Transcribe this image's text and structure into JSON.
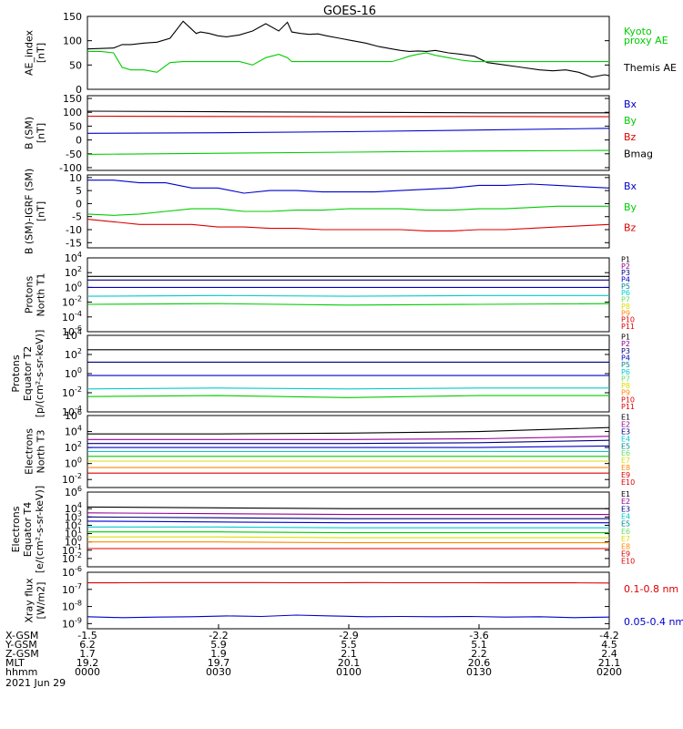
{
  "title": "GOES-16",
  "colors": {
    "black": "#000000",
    "blue": "#0000cc",
    "green": "#00cc00",
    "red": "#dd0000",
    "cyan": "#00cccc",
    "yellow": "#dddd00",
    "orange": "#ff8800",
    "purple": "#990099",
    "navy": "#000080",
    "teal": "#008b8b",
    "lightgreen": "#66dd66"
  },
  "x_axis": {
    "ticks": [
      "-1.5",
      "-2.2",
      "-2.9",
      "-3.6",
      "-4.2"
    ],
    "rows": [
      {
        "label": "X-GSM",
        "values": [
          "-1.5",
          "-2.2",
          "-2.9",
          "-3.6",
          "-4.2"
        ]
      },
      {
        "label": "Y-GSM",
        "values": [
          "6.2",
          "5.9",
          "5.5",
          "5.1",
          "4.5"
        ]
      },
      {
        "label": "Z-GSM",
        "values": [
          "1.7",
          "1.9",
          "2.1",
          "2.2",
          "2.4"
        ]
      },
      {
        "label": "MLT",
        "values": [
          "19.2",
          "19.7",
          "20.1",
          "20.6",
          "21.1"
        ]
      },
      {
        "label": "hhmm",
        "values": [
          "0000",
          "0030",
          "0100",
          "0130",
          "0200"
        ]
      }
    ],
    "date": "2021 Jun 29"
  },
  "chart_data": [
    {
      "type": "line",
      "ylabel": [
        "AE_index",
        "[nT]"
      ],
      "ylim": [
        0,
        150
      ],
      "yticks": [
        "0",
        "50",
        "100",
        "150"
      ],
      "legend": [
        {
          "text": "Kyoto",
          "color": "green"
        },
        {
          "text": "proxy AE",
          "color": "green"
        },
        {
          "text": "Themis AE",
          "color": "black"
        }
      ],
      "x": [
        0,
        3,
        6,
        8,
        10,
        13,
        16,
        19,
        22,
        25,
        26,
        28,
        30,
        32,
        35,
        38,
        41,
        44,
        46,
        47,
        49,
        51,
        53,
        55,
        58,
        61,
        64,
        67,
        70,
        72,
        74,
        76,
        78,
        80,
        83,
        86,
        89,
        92,
        96,
        100,
        104,
        107,
        110,
        113,
        116,
        119,
        120
      ],
      "series": [
        {
          "name": "Themis AE",
          "color": "black",
          "values": [
            83,
            84,
            85,
            92,
            92,
            95,
            97,
            105,
            140,
            115,
            118,
            115,
            110,
            108,
            112,
            120,
            135,
            120,
            138,
            118,
            115,
            113,
            114,
            110,
            105,
            100,
            95,
            88,
            83,
            80,
            78,
            79,
            78,
            80,
            75,
            72,
            68,
            55,
            50,
            45,
            40,
            38,
            40,
            35,
            25,
            30,
            28
          ]
        },
        {
          "name": "Kyoto",
          "color": "green",
          "values": [
            78,
            78,
            75,
            45,
            40,
            40,
            35,
            55,
            57,
            57,
            57,
            57,
            57,
            57,
            57,
            50,
            65,
            72,
            65,
            57,
            57,
            57,
            57,
            57,
            57,
            57,
            57,
            57,
            57,
            62,
            68,
            72,
            75,
            70,
            65,
            60,
            57,
            57,
            57,
            57,
            57,
            57,
            57,
            57,
            57,
            57,
            57
          ]
        }
      ]
    },
    {
      "type": "line",
      "ylabel": [
        "B (SM)",
        "[nT]"
      ],
      "ylim": [
        -110,
        160
      ],
      "yticks": [
        "-100",
        "-50",
        "0",
        "50",
        "100",
        "150"
      ],
      "legend": [
        {
          "text": "Bx",
          "color": "blue"
        },
        {
          "text": "By",
          "color": "green"
        },
        {
          "text": "Bz",
          "color": "red"
        },
        {
          "text": "Bmag",
          "color": "black"
        }
      ],
      "x": [
        0,
        30,
        60,
        90,
        120
      ],
      "series": [
        {
          "name": "Bmag",
          "color": "black",
          "values": [
            104,
            102,
            100,
            98,
            98
          ]
        },
        {
          "name": "Bz",
          "color": "red",
          "values": [
            86,
            85,
            84,
            85,
            84
          ]
        },
        {
          "name": "Bx",
          "color": "blue",
          "values": [
            24,
            26,
            30,
            36,
            42
          ]
        },
        {
          "name": "By",
          "color": "green",
          "values": [
            -52,
            -48,
            -44,
            -40,
            -38
          ]
        }
      ]
    },
    {
      "type": "line",
      "ylabel": [
        "B (SM)-IGRF (SM)",
        "[nT]"
      ],
      "ylim": [
        -17,
        11
      ],
      "yticks": [
        "-15",
        "-10",
        "-5",
        "0",
        "5",
        "10"
      ],
      "legend": [
        {
          "text": "Bx",
          "color": "blue"
        },
        {
          "text": "By",
          "color": "green"
        },
        {
          "text": "Bz",
          "color": "red"
        }
      ],
      "x": [
        0,
        6,
        12,
        18,
        24,
        30,
        36,
        42,
        48,
        54,
        60,
        66,
        72,
        78,
        84,
        90,
        96,
        102,
        108,
        114,
        120
      ],
      "series": [
        {
          "name": "Bx",
          "color": "blue",
          "values": [
            9,
            9,
            8,
            8,
            6,
            6,
            4,
            5,
            5,
            4.5,
            4.5,
            4.5,
            5,
            5.5,
            6,
            7,
            7,
            7.5,
            7,
            6.5,
            6
          ]
        },
        {
          "name": "By",
          "color": "green",
          "values": [
            -4,
            -4.5,
            -4,
            -3,
            -2,
            -2,
            -3,
            -3,
            -2.5,
            -2.5,
            -2,
            -2,
            -2,
            -2.5,
            -2.5,
            -2,
            -2,
            -1.5,
            -1,
            -1,
            -1
          ]
        },
        {
          "name": "Bz",
          "color": "red",
          "values": [
            -6,
            -7,
            -8,
            -8,
            -8,
            -9,
            -9,
            -9.5,
            -9.5,
            -10,
            -10,
            -10,
            -10,
            -10.5,
            -10.5,
            -10,
            -10,
            -9.5,
            -9,
            -8.5,
            -8
          ]
        }
      ]
    },
    {
      "type": "line",
      "ylog": true,
      "ylabel": [
        "Protons",
        "North T1"
      ],
      "yexp_min": -6,
      "yexp_max": 4,
      "yticks": [
        "10^4",
        "10^2",
        "10^0",
        "10^-2",
        "10^-4",
        "10^-6"
      ],
      "legend": [
        {
          "text": "P1",
          "color": "black"
        },
        {
          "text": "P2",
          "color": "purple"
        },
        {
          "text": "P3",
          "color": "navy"
        },
        {
          "text": "P4",
          "color": "blue"
        },
        {
          "text": "P5",
          "color": "teal"
        },
        {
          "text": "P6",
          "color": "cyan"
        },
        {
          "text": "P7",
          "color": "lightgreen"
        },
        {
          "text": "P8",
          "color": "yellow"
        },
        {
          "text": "P9",
          "color": "orange"
        },
        {
          "text": "P10",
          "color": "red"
        },
        {
          "text": "P11",
          "color": "red"
        }
      ],
      "x": [
        0,
        30,
        60,
        90,
        120
      ],
      "series": [
        {
          "name": "P1",
          "color": "black",
          "values": [
            1.5,
            1.5,
            1.5,
            1.5,
            1.5
          ]
        },
        {
          "name": "P3",
          "color": "navy",
          "values": [
            1.0,
            1.0,
            1.0,
            1.0,
            1.0
          ]
        },
        {
          "name": "P4",
          "color": "blue",
          "values": [
            0.0,
            0.0,
            0.0,
            0.0,
            0.0
          ]
        },
        {
          "name": "P6",
          "color": "cyan",
          "values": [
            -1.2,
            -1.1,
            -1.2,
            -1.1,
            -1.1
          ]
        },
        {
          "name": "P7",
          "color": "green",
          "values": [
            -2.3,
            -2.2,
            -2.4,
            -2.3,
            -2.2
          ]
        }
      ]
    },
    {
      "type": "line",
      "ylog": true,
      "ylabel": [
        "Protons",
        "Equator T2",
        "[p/(cm²-s-sr-keV)]"
      ],
      "yexp_min": -4,
      "yexp_max": 4,
      "yticks": [
        "10^4",
        "10^2",
        "10^0",
        "10^-2",
        "10^-4"
      ],
      "legend": [
        {
          "text": "P1",
          "color": "black"
        },
        {
          "text": "P2",
          "color": "purple"
        },
        {
          "text": "P3",
          "color": "navy"
        },
        {
          "text": "P4",
          "color": "blue"
        },
        {
          "text": "P5",
          "color": "teal"
        },
        {
          "text": "P6",
          "color": "cyan"
        },
        {
          "text": "P7",
          "color": "lightgreen"
        },
        {
          "text": "P8",
          "color": "yellow"
        },
        {
          "text": "P9",
          "color": "orange"
        },
        {
          "text": "P10",
          "color": "red"
        },
        {
          "text": "P11",
          "color": "red"
        }
      ],
      "x": [
        0,
        30,
        60,
        90,
        120
      ],
      "series": [
        {
          "name": "P1",
          "color": "black",
          "values": [
            2.5,
            2.5,
            2.5,
            2.5,
            2.5
          ]
        },
        {
          "name": "P3",
          "color": "navy",
          "values": [
            1.2,
            1.2,
            1.2,
            1.2,
            1.2
          ]
        },
        {
          "name": "P4",
          "color": "blue",
          "values": [
            -0.2,
            -0.2,
            -0.2,
            -0.2,
            -0.2
          ]
        },
        {
          "name": "P6",
          "color": "cyan",
          "values": [
            -1.6,
            -1.5,
            -1.6,
            -1.5,
            -1.5
          ]
        },
        {
          "name": "P7",
          "color": "green",
          "values": [
            -2.4,
            -2.3,
            -2.5,
            -2.3,
            -2.3
          ]
        }
      ]
    },
    {
      "type": "line",
      "ylog": true,
      "ylabel": [
        "Electrons",
        "North T3"
      ],
      "yexp_min": -3,
      "yexp_max": 6,
      "yticks": [
        "10^6",
        "10^4",
        "10^2",
        "10^0",
        "10^-2"
      ],
      "legend": [
        {
          "text": "E1",
          "color": "black"
        },
        {
          "text": "E2",
          "color": "purple"
        },
        {
          "text": "E3",
          "color": "navy"
        },
        {
          "text": "E4",
          "color": "cyan"
        },
        {
          "text": "E5",
          "color": "teal"
        },
        {
          "text": "E6",
          "color": "lightgreen"
        },
        {
          "text": "E7",
          "color": "yellow"
        },
        {
          "text": "E8",
          "color": "orange"
        },
        {
          "text": "E9",
          "color": "red"
        },
        {
          "text": "E10",
          "color": "red"
        }
      ],
      "x": [
        0,
        30,
        60,
        90,
        120
      ],
      "series": [
        {
          "name": "E1",
          "color": "black",
          "values": [
            3.7,
            3.7,
            3.8,
            4.0,
            4.5
          ]
        },
        {
          "name": "E2",
          "color": "purple",
          "values": [
            3.0,
            3.0,
            3.0,
            3.1,
            3.4
          ]
        },
        {
          "name": "E3",
          "color": "navy",
          "values": [
            2.5,
            2.5,
            2.5,
            2.6,
            2.9
          ]
        },
        {
          "name": "E4",
          "color": "blue",
          "values": [
            2.0,
            2.0,
            2.0,
            2.0,
            2.2
          ]
        },
        {
          "name": "E5",
          "color": "cyan",
          "values": [
            1.5,
            1.5,
            1.5,
            1.5,
            1.5
          ]
        },
        {
          "name": "E6",
          "color": "green",
          "values": [
            0.9,
            0.9,
            0.9,
            0.9,
            0.9
          ]
        },
        {
          "name": "E7",
          "color": "yellow",
          "values": [
            0.3,
            0.3,
            0.3,
            0.3,
            0.3
          ]
        },
        {
          "name": "E8",
          "color": "orange",
          "values": [
            -0.5,
            -0.5,
            -0.5,
            -0.5,
            -0.5
          ]
        },
        {
          "name": "E9",
          "color": "red",
          "values": [
            -1.2,
            -1.2,
            -1.2,
            -1.2,
            -1.2
          ]
        }
      ]
    },
    {
      "type": "line",
      "ylog": true,
      "ylabel": [
        "Electrons",
        "Equator T4",
        "[e/(cm²-s-sr-keV)]"
      ],
      "yexp_min": -3,
      "yexp_max": 6,
      "yticks": [
        "10^6",
        "10^4",
        "10^3",
        "10^2",
        "10^1",
        "10^0",
        "10^-1",
        "10^-2"
      ],
      "legend": [
        {
          "text": "E1",
          "color": "black"
        },
        {
          "text": "E2",
          "color": "purple"
        },
        {
          "text": "E3",
          "color": "navy"
        },
        {
          "text": "E4",
          "color": "cyan"
        },
        {
          "text": "E5",
          "color": "teal"
        },
        {
          "text": "E6",
          "color": "lightgreen"
        },
        {
          "text": "E7",
          "color": "yellow"
        },
        {
          "text": "E8",
          "color": "orange"
        },
        {
          "text": "E9",
          "color": "red"
        },
        {
          "text": "E10",
          "color": "red"
        }
      ],
      "x": [
        0,
        30,
        60,
        90,
        120
      ],
      "series": [
        {
          "name": "E1",
          "color": "black",
          "values": [
            4.2,
            4.1,
            4.0,
            4.0,
            4.0
          ]
        },
        {
          "name": "E2",
          "color": "purple",
          "values": [
            3.5,
            3.4,
            3.3,
            3.3,
            3.3
          ]
        },
        {
          "name": "E3",
          "color": "navy",
          "values": [
            3.0,
            2.9,
            2.8,
            2.8,
            2.8
          ]
        },
        {
          "name": "E4",
          "color": "blue",
          "values": [
            2.5,
            2.4,
            2.3,
            2.3,
            2.3
          ]
        },
        {
          "name": "E5",
          "color": "cyan",
          "values": [
            1.8,
            1.8,
            1.7,
            1.7,
            1.7
          ]
        },
        {
          "name": "E6",
          "color": "green",
          "values": [
            1.2,
            1.2,
            1.1,
            1.1,
            1.1
          ]
        },
        {
          "name": "E7",
          "color": "yellow",
          "values": [
            0.6,
            0.6,
            0.5,
            0.5,
            0.5
          ]
        },
        {
          "name": "E8",
          "color": "orange",
          "values": [
            0.0,
            0.0,
            -0.1,
            -0.1,
            -0.1
          ]
        },
        {
          "name": "E9",
          "color": "red",
          "values": [
            -0.8,
            -0.8,
            -0.8,
            -0.8,
            -0.8
          ]
        }
      ]
    },
    {
      "type": "line",
      "ylog": true,
      "ylabel": [
        "Xray flux",
        "[W/m2]"
      ],
      "yexp_min": -9.3,
      "yexp_max": -6,
      "yticks": [
        "10^-6",
        "10^-7",
        "10^-8",
        "10^-9"
      ],
      "legend": [
        {
          "text": "0.1-0.8 nm",
          "color": "red"
        },
        {
          "text": "0.05-0.4 nm",
          "color": "blue"
        }
      ],
      "x": [
        0,
        8,
        16,
        24,
        32,
        40,
        48,
        56,
        64,
        72,
        80,
        88,
        96,
        104,
        112,
        120
      ],
      "series": [
        {
          "name": "0.1-0.8 nm",
          "color": "red",
          "values": [
            -6.62,
            -6.61,
            -6.6,
            -6.6,
            -6.6,
            -6.6,
            -6.61,
            -6.61,
            -6.6,
            -6.61,
            -6.61,
            -6.61,
            -6.62,
            -6.62,
            -6.62,
            -6.63
          ]
        },
        {
          "name": "0.05-0.4 nm",
          "color": "blue",
          "values": [
            -8.6,
            -8.65,
            -8.62,
            -8.6,
            -8.55,
            -8.58,
            -8.5,
            -8.55,
            -8.6,
            -8.58,
            -8.6,
            -8.58,
            -8.62,
            -8.6,
            -8.65,
            -8.62
          ]
        }
      ]
    }
  ]
}
